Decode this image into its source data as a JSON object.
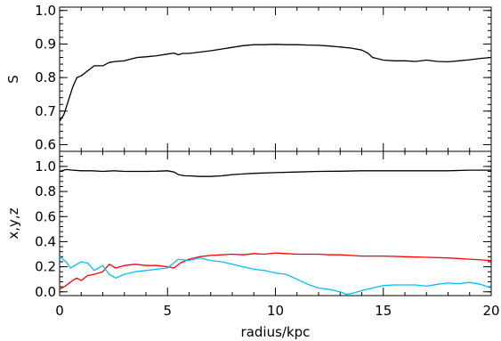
{
  "chart_data": [
    {
      "type": "line",
      "xlabel": "",
      "ylabel": "S",
      "xlim": [
        0,
        20
      ],
      "ylim": [
        0.58,
        1.01
      ],
      "yticks": [
        "0.6",
        "0.7",
        "0.8",
        "0.9",
        "1.0"
      ],
      "ytick_values": [
        0.6,
        0.7,
        0.8,
        0.9,
        1.0
      ],
      "grid": false,
      "series": [
        {
          "color": "#000000",
          "x": [
            0,
            0.2,
            0.4,
            0.6,
            0.8,
            1.0,
            1.3,
            1.6,
            2.0,
            2.3,
            2.6,
            3.0,
            3.3,
            3.6,
            4.0,
            4.5,
            5.0,
            5.3,
            5.5,
            5.7,
            6.0,
            6.5,
            7.0,
            7.5,
            8.0,
            8.5,
            9.0,
            9.5,
            10.0,
            10.5,
            11.0,
            11.5,
            12.0,
            12.5,
            13.0,
            13.5,
            14.0,
            14.3,
            14.5,
            15.0,
            15.5,
            16.0,
            16.5,
            17.0,
            17.5,
            18.0,
            18.5,
            19.0,
            19.5,
            20.0
          ],
          "y": [
            0.67,
            0.69,
            0.73,
            0.77,
            0.8,
            0.805,
            0.82,
            0.835,
            0.835,
            0.845,
            0.848,
            0.85,
            0.855,
            0.86,
            0.862,
            0.865,
            0.87,
            0.873,
            0.868,
            0.872,
            0.872,
            0.876,
            0.88,
            0.885,
            0.89,
            0.895,
            0.898,
            0.898,
            0.899,
            0.898,
            0.898,
            0.897,
            0.896,
            0.894,
            0.891,
            0.888,
            0.882,
            0.872,
            0.86,
            0.852,
            0.85,
            0.85,
            0.848,
            0.852,
            0.848,
            0.847,
            0.85,
            0.853,
            0.857,
            0.86
          ]
        }
      ]
    },
    {
      "type": "line",
      "xlabel": "radius/kpc",
      "ylabel": "x,y,z",
      "xlim": [
        0,
        20
      ],
      "ylim": [
        -0.03,
        1.12
      ],
      "yticks": [
        "0.0",
        "0.2",
        "0.4",
        "0.6",
        "0.8",
        "1.0"
      ],
      "ytick_values": [
        0.0,
        0.2,
        0.4,
        0.6,
        0.8,
        1.0
      ],
      "xticks": [
        "0",
        "5",
        "10",
        "15",
        "20"
      ],
      "xtick_values": [
        0,
        5,
        10,
        15,
        20
      ],
      "grid": false,
      "series": [
        {
          "color": "#000000",
          "x": [
            0,
            0.3,
            0.6,
            1.0,
            1.5,
            2.0,
            2.5,
            3.0,
            3.5,
            4.0,
            4.5,
            5.0,
            5.3,
            5.5,
            5.8,
            6.0,
            6.5,
            7.0,
            7.5,
            8.0,
            8.5,
            9.0,
            10.0,
            11.0,
            12.0,
            13.0,
            14.0,
            15.0,
            16.0,
            17.0,
            18.0,
            19.0,
            20.0
          ],
          "y": [
            0.96,
            0.975,
            0.97,
            0.965,
            0.965,
            0.96,
            0.965,
            0.96,
            0.96,
            0.96,
            0.962,
            0.965,
            0.955,
            0.935,
            0.925,
            0.925,
            0.92,
            0.92,
            0.925,
            0.935,
            0.94,
            0.945,
            0.95,
            0.955,
            0.96,
            0.962,
            0.965,
            0.965,
            0.965,
            0.965,
            0.965,
            0.97,
            0.97
          ]
        },
        {
          "color": "#ff0000",
          "x": [
            0,
            0.3,
            0.6,
            0.8,
            1.0,
            1.3,
            1.6,
            2.0,
            2.3,
            2.6,
            3.0,
            3.5,
            4.0,
            4.5,
            5.0,
            5.3,
            5.6,
            6.0,
            6.5,
            7.0,
            7.5,
            8.0,
            8.5,
            9.0,
            9.5,
            10.0,
            10.5,
            11.0,
            11.5,
            12.0,
            12.5,
            13.0,
            13.5,
            14.0,
            15.0,
            16.0,
            17.0,
            18.0,
            19.0,
            20.0
          ],
          "y": [
            0.02,
            0.05,
            0.09,
            0.11,
            0.09,
            0.13,
            0.14,
            0.16,
            0.22,
            0.19,
            0.21,
            0.22,
            0.21,
            0.21,
            0.2,
            0.19,
            0.23,
            0.26,
            0.28,
            0.29,
            0.295,
            0.3,
            0.295,
            0.305,
            0.3,
            0.31,
            0.305,
            0.3,
            0.3,
            0.3,
            0.295,
            0.295,
            0.29,
            0.285,
            0.285,
            0.28,
            0.275,
            0.27,
            0.26,
            0.25
          ]
        },
        {
          "color": "#00bfff",
          "x": [
            0,
            0.3,
            0.5,
            0.7,
            1.0,
            1.3,
            1.6,
            2.0,
            2.3,
            2.6,
            3.0,
            3.5,
            4.0,
            4.5,
            5.0,
            5.5,
            6.0,
            6.5,
            7.0,
            7.5,
            8.0,
            8.5,
            9.0,
            9.5,
            10.0,
            10.5,
            11.0,
            11.5,
            12.0,
            12.5,
            13.0,
            13.3,
            13.6,
            14.0,
            14.5,
            15.0,
            15.5,
            16.0,
            16.5,
            17.0,
            17.5,
            18.0,
            18.5,
            19.0,
            19.5,
            20.0
          ],
          "y": [
            0.28,
            0.24,
            0.19,
            0.21,
            0.24,
            0.23,
            0.17,
            0.21,
            0.14,
            0.11,
            0.14,
            0.16,
            0.17,
            0.18,
            0.19,
            0.26,
            0.25,
            0.27,
            0.25,
            0.24,
            0.22,
            0.2,
            0.18,
            0.17,
            0.15,
            0.14,
            0.1,
            0.06,
            0.03,
            0.02,
            0.0,
            -0.02,
            -0.01,
            0.01,
            0.03,
            0.05,
            0.055,
            0.055,
            0.055,
            0.045,
            0.06,
            0.07,
            0.065,
            0.075,
            0.06,
            0.03
          ]
        }
      ]
    }
  ]
}
